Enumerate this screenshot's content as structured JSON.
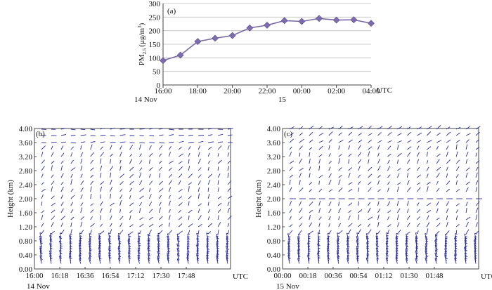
{
  "chart_data": [
    {
      "type": "line",
      "panel_label": "(a)",
      "ylabel": "PM2.5 (μg/m³)",
      "ylabel_main": "PM",
      "ylabel_sub": "2.5",
      "ylabel_unit": "(μg/m",
      "ylabel_sup": "3",
      "ylabel_close": ")",
      "x": [
        "16:00",
        "17:00",
        "18:00",
        "19:00",
        "20:00",
        "21:00",
        "22:00",
        "23:00",
        "00:00",
        "01:00",
        "02:00",
        "03:00",
        "04:00"
      ],
      "values": [
        90,
        110,
        160,
        172,
        182,
        210,
        220,
        237,
        234,
        245,
        239,
        240,
        227
      ],
      "ylim": [
        0,
        300
      ],
      "yticks": [
        "0",
        "50",
        "100",
        "150",
        "200",
        "250",
        "300"
      ],
      "xtick_labels": [
        "16:00",
        "18:00",
        "20:00",
        "22:00",
        "00:00",
        "02:00",
        "04:00"
      ],
      "x_unit": "UTC",
      "date_labels": [
        "14 Nov",
        "15"
      ],
      "grid": true,
      "marker": "diamond",
      "color": "#7d6cae"
    },
    {
      "type": "barb",
      "panel_label": "(b)",
      "ylabel": "Height (km)",
      "ylim": [
        0,
        4.0
      ],
      "yticks": [
        "0.00",
        "0.40",
        "0.80",
        "1.20",
        "1.60",
        "2.00",
        "2.40",
        "2.80",
        "3.20",
        "3.60",
        "4.00"
      ],
      "xtick_labels": [
        "16:00",
        "16:18",
        "16:36",
        "16:54",
        "17:12",
        "17:30",
        "17:48"
      ],
      "x_unit": "UTC",
      "date_label": "14 Nov",
      "color": "#2b2f9e"
    },
    {
      "type": "barb",
      "panel_label": "(c)",
      "ylabel": "Height (km)",
      "ylim": [
        0,
        4.0
      ],
      "yticks": [
        "0.00",
        "0.40",
        "0.80",
        "1.20",
        "1.60",
        "2.00",
        "2.40",
        "2.80",
        "3.20",
        "3.60",
        "4.00"
      ],
      "xtick_labels": [
        "00:00",
        "00:18",
        "00:36",
        "00:54",
        "01:12",
        "01:30",
        "01:48"
      ],
      "x_unit": "UTC",
      "date_label": "15 Nov",
      "color": "#2b2f9e"
    }
  ]
}
